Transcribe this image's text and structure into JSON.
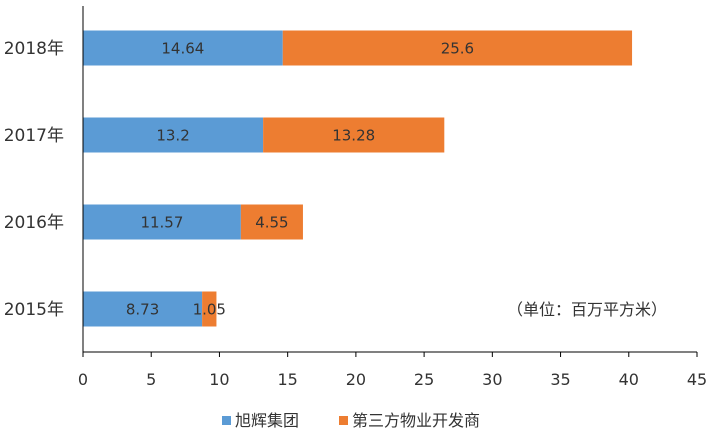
{
  "chart_data": {
    "type": "bar",
    "orientation": "horizontal",
    "stacked": true,
    "categories": [
      "2018年",
      "2017年",
      "2016年",
      "2015年"
    ],
    "series": [
      {
        "name": "旭辉集团",
        "values": [
          14.64,
          13.2,
          11.57,
          8.73
        ],
        "color": "#5B9BD5"
      },
      {
        "name": "第三方物业开发商",
        "values": [
          25.6,
          13.28,
          4.55,
          1.05
        ],
        "color": "#ED7D31"
      }
    ],
    "xlim": [
      0,
      45
    ],
    "xticks": [
      0,
      5,
      10,
      15,
      20,
      25,
      30,
      35,
      40,
      45
    ],
    "unit_note": "（单位：百万平方米）",
    "legend_position": "bottom",
    "grid": false
  }
}
